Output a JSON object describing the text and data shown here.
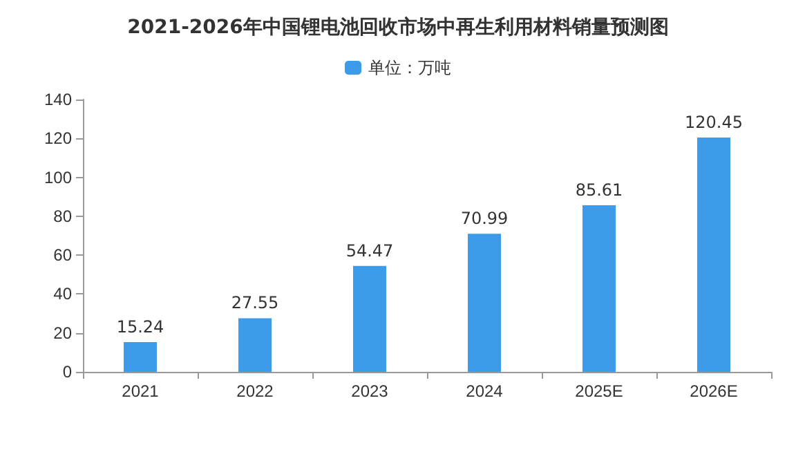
{
  "chart_data": {
    "type": "bar",
    "title": "2021-2026年中国锂电池回收市场中再生利用材料销量预测图",
    "categories": [
      "2021",
      "2022",
      "2023",
      "2024",
      "2025E",
      "2026E"
    ],
    "series": [
      {
        "name": "单位：万吨",
        "color": "#3d9be9",
        "values": [
          15.24,
          27.55,
          54.47,
          70.99,
          85.61,
          120.45
        ]
      }
    ],
    "ylim": [
      0,
      140
    ],
    "yticks": [
      0,
      20,
      40,
      60,
      80,
      100,
      120,
      140
    ],
    "grid": false,
    "legend": "top",
    "data_labels": true
  }
}
